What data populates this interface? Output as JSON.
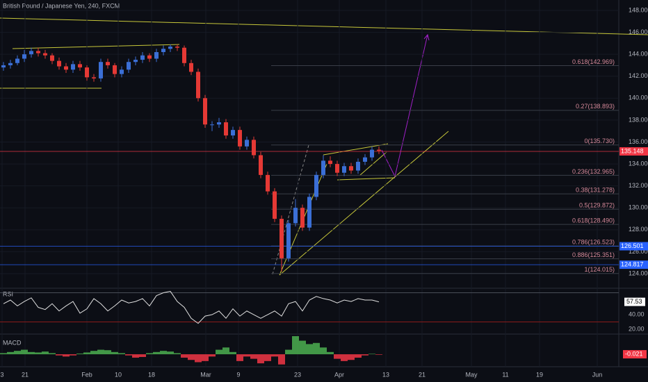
{
  "chart_data": {
    "type": "candlestick",
    "title": "British Pound / Japanese Yen, 240, FXCM",
    "up_color": "#3b6fd6",
    "down_color": "#e53935",
    "x": [
      0,
      1,
      2,
      3,
      4,
      5,
      6,
      7,
      8,
      9,
      10,
      11,
      12,
      13,
      14,
      15,
      16,
      17,
      18,
      19,
      20,
      21,
      22,
      23,
      24,
      25,
      26,
      27,
      28,
      29,
      30,
      31,
      32,
      33,
      34,
      35,
      36,
      37,
      38,
      39,
      40,
      41,
      42,
      43,
      44,
      45,
      46,
      47,
      48,
      49,
      50,
      51,
      52,
      53,
      54
    ],
    "open": [
      142.8,
      143.0,
      143.2,
      143.6,
      144.0,
      144.3,
      144.1,
      143.9,
      143.4,
      142.9,
      142.6,
      143.1,
      142.8,
      141.9,
      141.8,
      143.3,
      143.0,
      142.2,
      142.6,
      143.3,
      143.5,
      143.9,
      143.6,
      144.2,
      144.5,
      144.7,
      144.6,
      143.2,
      142.4,
      140.0,
      137.6,
      137.6,
      137.8,
      136.6,
      137.1,
      135.6,
      136.2,
      134.8,
      133.0,
      131.5,
      129.0,
      125.4,
      128.6,
      130.0,
      128.2,
      131.0,
      133.0,
      134.3,
      134.0,
      133.2,
      133.8,
      133.4,
      134.2,
      134.6,
      135.3
    ],
    "high": [
      143.3,
      143.5,
      143.9,
      144.4,
      144.6,
      144.6,
      144.4,
      144.1,
      143.7,
      143.2,
      143.4,
      143.4,
      143.0,
      142.2,
      143.6,
      143.6,
      143.2,
      142.9,
      143.6,
      143.8,
      144.2,
      144.1,
      144.5,
      144.8,
      144.9,
      144.9,
      144.8,
      143.5,
      142.7,
      140.3,
      137.9,
      138.2,
      138.1,
      137.4,
      137.4,
      136.5,
      136.5,
      135.1,
      133.3,
      131.8,
      129.3,
      128.9,
      130.8,
      130.3,
      131.3,
      133.3,
      134.8,
      134.7,
      134.3,
      134.1,
      134.1,
      134.5,
      134.9,
      135.6,
      135.6
    ],
    "low": [
      142.5,
      142.7,
      143.0,
      143.3,
      143.7,
      143.8,
      143.6,
      143.1,
      142.6,
      142.3,
      142.3,
      142.5,
      141.6,
      141.5,
      141.5,
      142.7,
      141.9,
      141.9,
      142.3,
      143.0,
      143.2,
      143.3,
      143.3,
      143.9,
      144.2,
      144.3,
      142.9,
      142.1,
      139.7,
      137.3,
      137.0,
      137.3,
      136.3,
      136.3,
      135.3,
      135.3,
      134.5,
      132.7,
      131.2,
      128.7,
      124.2,
      125.1,
      128.3,
      127.9,
      127.9,
      130.7,
      132.7,
      133.7,
      132.9,
      132.9,
      133.1,
      133.1,
      133.9,
      134.3,
      134.9
    ],
    "close": [
      143.0,
      143.2,
      143.6,
      144.0,
      144.3,
      144.1,
      143.9,
      143.4,
      142.9,
      142.6,
      143.1,
      142.8,
      141.9,
      141.8,
      143.3,
      143.0,
      142.2,
      142.6,
      143.3,
      143.5,
      143.9,
      143.6,
      144.2,
      144.5,
      144.7,
      144.6,
      143.2,
      142.4,
      140.0,
      137.6,
      137.6,
      137.8,
      136.6,
      137.1,
      135.6,
      136.2,
      134.8,
      133.0,
      131.5,
      129.0,
      125.4,
      128.6,
      130.0,
      128.2,
      131.0,
      133.0,
      134.3,
      134.0,
      133.2,
      133.8,
      133.4,
      134.2,
      134.6,
      135.3,
      135.2
    ],
    "xlim": [
      -0.5,
      88.5
    ],
    "xticks": [
      {
        "value": -0.2,
        "label": "3"
      },
      {
        "value": 3.1,
        "label": "21"
      },
      {
        "value": 12,
        "label": "Feb"
      },
      {
        "value": 16.5,
        "label": "10"
      },
      {
        "value": 21.3,
        "label": "18"
      },
      {
        "value": 29.1,
        "label": "Mar"
      },
      {
        "value": 33.8,
        "label": "9"
      },
      {
        "value": 42.3,
        "label": "23"
      },
      {
        "value": 48.3,
        "label": "Apr"
      },
      {
        "value": 55,
        "label": "13"
      },
      {
        "value": 60.2,
        "label": "21"
      },
      {
        "value": 67.3,
        "label": "May"
      },
      {
        "value": 72.2,
        "label": "11"
      },
      {
        "value": 77.1,
        "label": "19"
      },
      {
        "value": 85.4,
        "label": "Jun"
      }
    ],
    "ylim": [
      122.67,
      148.95
    ],
    "yticks": [
      {
        "value": 148,
        "label": "148.000"
      },
      {
        "value": 146,
        "label": "146.000"
      },
      {
        "value": 144,
        "label": "144.000"
      },
      {
        "value": 142,
        "label": "142.000"
      },
      {
        "value": 140,
        "label": "140.000"
      },
      {
        "value": 138,
        "label": "138.000"
      },
      {
        "value": 136,
        "label": "136.000"
      },
      {
        "value": 134,
        "label": "134.000"
      },
      {
        "value": 132,
        "label": "132.000"
      },
      {
        "value": 130,
        "label": "130.000"
      },
      {
        "value": 128,
        "label": "128.000"
      },
      {
        "value": 126,
        "label": "126.000"
      },
      {
        "value": 124,
        "label": "124.000"
      }
    ],
    "grid": true,
    "fib_levels": [
      {
        "value": 142.969,
        "label": "0.618(142.969)"
      },
      {
        "value": 138.893,
        "label": "0.27(138.893)"
      },
      {
        "value": 135.73,
        "label": "0(135.730)"
      },
      {
        "value": 132.965,
        "label": "0.236(132.965)"
      },
      {
        "value": 131.278,
        "label": "0.38(131.278)"
      },
      {
        "value": 129.872,
        "label": "0.5(129.872)"
      },
      {
        "value": 128.49,
        "label": "0.618(128.490)"
      },
      {
        "value": 126.523,
        "label": "0.786(126.523)"
      },
      {
        "value": 125.351,
        "label": "0.886(125.351)"
      },
      {
        "value": 124.015,
        "label": "1(124.015)"
      }
    ],
    "price_lines": [
      {
        "value": 135.148,
        "label": "135.148",
        "color": "#f23645"
      },
      {
        "value": 126.501,
        "label": "126.501",
        "color": "#2962ff"
      },
      {
        "value": 124.817,
        "label": "124.817",
        "color": "#2962ff"
      }
    ],
    "rsi": {
      "name": "RSI",
      "color": "#e0e0e0",
      "values": [
        55,
        60,
        52,
        58,
        63,
        50,
        47,
        55,
        45,
        52,
        58,
        42,
        48,
        62,
        55,
        45,
        52,
        60,
        56,
        58,
        62,
        52,
        66,
        70,
        72,
        58,
        50,
        35,
        28,
        38,
        40,
        45,
        35,
        48,
        38,
        45,
        40,
        35,
        40,
        45,
        38,
        55,
        58,
        45,
        60,
        65,
        62,
        60,
        56,
        60,
        58,
        62,
        60,
        60,
        57.53
      ],
      "current_label": "57.53",
      "ylim": [
        14.3,
        74.3
      ],
      "yticks": [
        {
          "value": 40,
          "label": "40.00"
        },
        {
          "value": 20,
          "label": "20.00"
        }
      ]
    },
    "macd": {
      "name": "MACD",
      "up_color": "#4caf50",
      "down_color": "#f23645",
      "values": [
        0.05,
        0.1,
        0.15,
        0.2,
        0.1,
        0.08,
        0.12,
        0.05,
        -0.05,
        -0.1,
        -0.05,
        0.03,
        0.08,
        0.15,
        0.2,
        0.18,
        0.1,
        0.05,
        -0.05,
        -0.15,
        -0.12,
        0.05,
        0.1,
        0.15,
        0.12,
        0.05,
        -0.15,
        -0.25,
        -0.35,
        -0.3,
        -0.1,
        0.2,
        0.3,
        0.1,
        -0.3,
        -0.1,
        -0.2,
        -0.4,
        -0.3,
        -0.1,
        -0.45,
        0.2,
        0.8,
        0.6,
        0.45,
        0.5,
        0.3,
        0.1,
        -0.2,
        -0.3,
        -0.25,
        -0.15,
        -0.05,
        0.02,
        -0.021
      ],
      "current_label": "-0.021",
      "ylim": [
        -0.55,
        0.8
      ]
    }
  }
}
